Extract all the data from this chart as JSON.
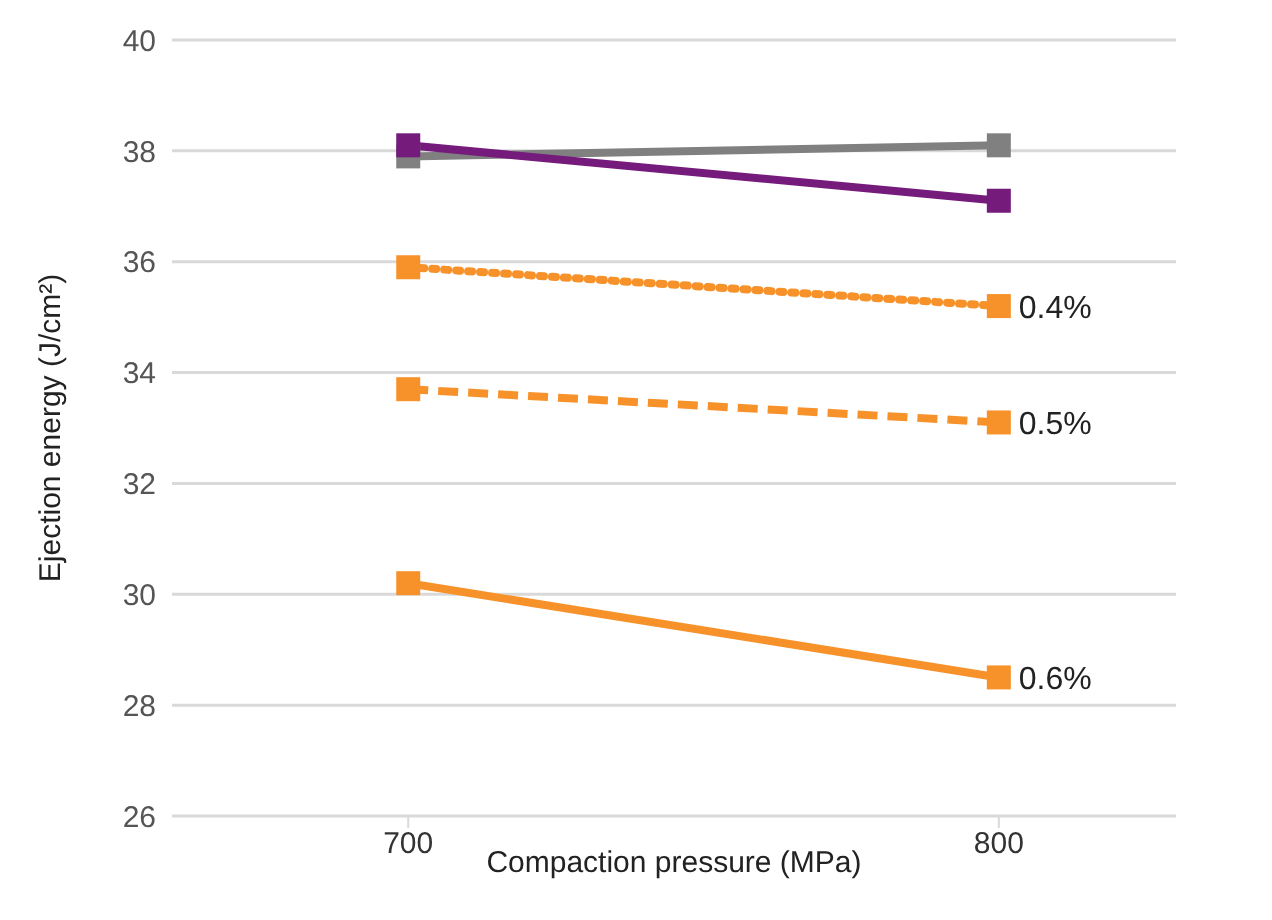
{
  "chart_data": {
    "type": "line",
    "xlabel": "Compaction pressure (MPa)",
    "ylabel": "Ejection energy (J/cm²)",
    "categories": [
      "700",
      "800"
    ],
    "series": [
      {
        "color": "#808080",
        "values": [
          37.9,
          38.1
        ],
        "line_style": "solid"
      },
      {
        "color": "#741b7c",
        "values": [
          38.1,
          37.1
        ],
        "line_style": "solid"
      },
      {
        "name": "0.4%",
        "color": "#f7922b",
        "values": [
          35.9,
          35.2
        ],
        "line_style": "dotted"
      },
      {
        "name": "0.5%",
        "color": "#f7922b",
        "values": [
          33.7,
          33.1
        ],
        "line_style": "dashed"
      },
      {
        "name": "0.6%",
        "color": "#f7922b",
        "values": [
          30.2,
          28.5
        ],
        "line_style": "solid"
      }
    ],
    "ylim": [
      26,
      40
    ],
    "yticks": [
      26,
      28,
      30,
      32,
      34,
      36,
      38,
      40
    ],
    "grid": "y",
    "legend": false,
    "marker": "square"
  }
}
